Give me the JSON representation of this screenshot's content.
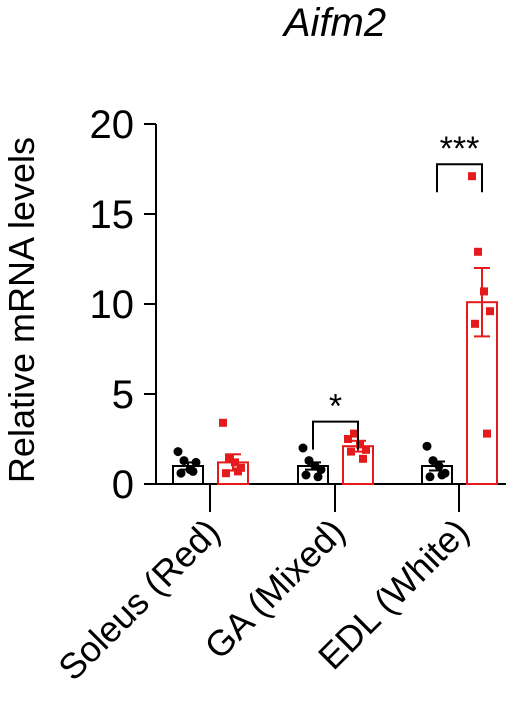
{
  "chart_data": {
    "type": "bar",
    "title": "Aifm2",
    "ylabel": "Relative mRNA levels",
    "xlabel": "",
    "ylim": [
      0,
      20
    ],
    "yticks": [
      0,
      5,
      10,
      15,
      20
    ],
    "categories": [
      "Soleus (Red)",
      "GA (Mixed)",
      "EDL (White)"
    ],
    "series": [
      {
        "color": "#000000",
        "marker": "circle",
        "fill": "#ffffff",
        "values": [
          1.0,
          1.0,
          1.0
        ],
        "sem": [
          0.2,
          0.2,
          0.25
        ],
        "points": [
          [
            1.8,
            1.3,
            0.8,
            1.2,
            0.6,
            0.7
          ],
          [
            2.0,
            1.3,
            1.0,
            0.8,
            0.5,
            0.4
          ],
          [
            2.1,
            1.3,
            1.0,
            0.6,
            0.4,
            0.5
          ]
        ]
      },
      {
        "color": "#e41a1c",
        "marker": "square",
        "fill": "#ffffff",
        "values": [
          1.2,
          2.1,
          10.1
        ],
        "sem": [
          0.45,
          0.3,
          1.9
        ],
        "points": [
          [
            3.4,
            1.4,
            1.2,
            0.9,
            0.6,
            0.7
          ],
          [
            2.5,
            2.8,
            2.2,
            1.9,
            1.8,
            1.4
          ],
          [
            17.1,
            12.9,
            10.7,
            9.6,
            8.9,
            2.8
          ]
        ]
      }
    ],
    "annotations": [
      {
        "category_index": 1,
        "label": "*"
      },
      {
        "category_index": 2,
        "label": "***"
      }
    ]
  }
}
